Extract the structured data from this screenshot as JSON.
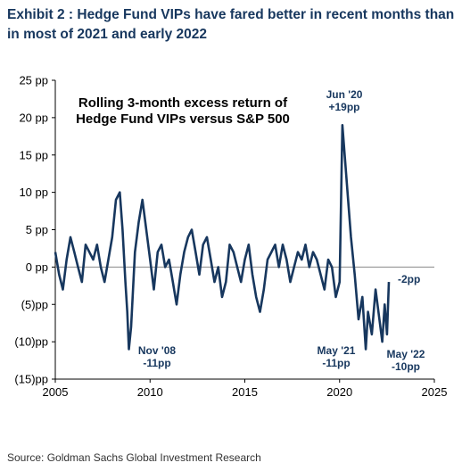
{
  "title": "Exhibit 2 : Hedge Fund VIPs have fared better in recent months than in most of 2021 and early 2022",
  "source": "Source: Goldman Sachs Global Investment Research",
  "chart_data": {
    "type": "line",
    "inset_title": [
      "Rolling 3-month excess return of",
      "Hedge Fund VIPs versus S&P 500"
    ],
    "xlim": [
      2005,
      2025
    ],
    "ylim": [
      -15,
      25
    ],
    "x_ticks": [
      2005,
      2010,
      2015,
      2020,
      2025
    ],
    "x_tick_labels": [
      "2005",
      "2010",
      "2015",
      "2020",
      "2025"
    ],
    "y_ticks": [
      25,
      20,
      15,
      10,
      5,
      0,
      -5,
      -10,
      -15
    ],
    "y_tick_labels": [
      "25 pp",
      "20 pp",
      "15 pp",
      "10 pp",
      "5 pp",
      "0 pp",
      "(5)pp",
      "(10)pp",
      "(15)pp"
    ],
    "grid": false,
    "line_color": "#17375e",
    "series": [
      {
        "x": [
          2005.0,
          2005.2,
          2005.4,
          2005.6,
          2005.8,
          2006.0,
          2006.2,
          2006.4,
          2006.6,
          2006.8,
          2007.0,
          2007.2,
          2007.4,
          2007.6,
          2007.8,
          2008.0,
          2008.2,
          2008.4,
          2008.55,
          2008.7,
          2008.8,
          2008.88,
          2009.0,
          2009.2,
          2009.4,
          2009.6,
          2009.8,
          2010.0,
          2010.2,
          2010.4,
          2010.6,
          2010.8,
          2011.0,
          2011.2,
          2011.4,
          2011.6,
          2011.8,
          2012.0,
          2012.2,
          2012.4,
          2012.6,
          2012.8,
          2013.0,
          2013.2,
          2013.4,
          2013.6,
          2013.8,
          2014.0,
          2014.2,
          2014.4,
          2014.6,
          2014.8,
          2015.0,
          2015.2,
          2015.4,
          2015.6,
          2015.8,
          2016.0,
          2016.2,
          2016.4,
          2016.6,
          2016.8,
          2017.0,
          2017.2,
          2017.4,
          2017.6,
          2017.8,
          2018.0,
          2018.2,
          2018.4,
          2018.6,
          2018.8,
          2019.0,
          2019.2,
          2019.4,
          2019.6,
          2019.8,
          2020.0,
          2020.15,
          2020.3,
          2020.45,
          2020.6,
          2020.8,
          2021.0,
          2021.2,
          2021.38,
          2021.5,
          2021.7,
          2021.9,
          2022.1,
          2022.25,
          2022.38,
          2022.5,
          2022.6
        ],
        "y": [
          2,
          -1,
          -3,
          1,
          4,
          2,
          0,
          -2,
          3,
          2,
          1,
          3,
          0,
          -2,
          1,
          4,
          9,
          10,
          5,
          -2,
          -6,
          -11,
          -8,
          2,
          6,
          9,
          5,
          1,
          -3,
          2,
          3,
          0,
          1,
          -2,
          -5,
          -1,
          2,
          4,
          5,
          2,
          -1,
          3,
          4,
          1,
          -2,
          0,
          -4,
          -2,
          3,
          2,
          0,
          -2,
          1,
          3,
          -1,
          -4,
          -6,
          -3,
          1,
          2,
          3,
          0,
          3,
          1,
          -2,
          0,
          2,
          1,
          3,
          0,
          2,
          1,
          -1,
          -3,
          1,
          0,
          -4,
          -2,
          19,
          14,
          9,
          4,
          -1,
          -7,
          -4,
          -11,
          -6,
          -9,
          -3,
          -7,
          -10,
          -5,
          -9,
          -2
        ]
      }
    ],
    "annotations": [
      {
        "lines": [
          "Nov '08",
          "-11pp"
        ]
      },
      {
        "lines": [
          "Jun '20",
          "+19pp"
        ]
      },
      {
        "lines": [
          "May '21",
          "-11pp"
        ]
      },
      {
        "lines": [
          "May '22",
          "-10pp"
        ]
      },
      {
        "lines": [
          "-2pp"
        ]
      }
    ]
  }
}
